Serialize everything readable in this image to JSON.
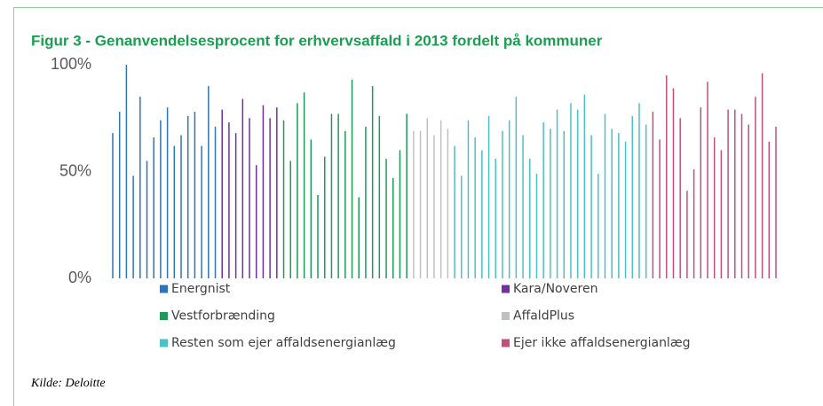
{
  "chart_data": {
    "type": "bar",
    "title": "Figur 3 - Genanvendelsesprocent for erhvervsaffald i 2013 fordelt på kommuner",
    "source": "Kilde: Deloitte",
    "ylim": [
      0,
      100
    ],
    "yticks": [
      {
        "value": 0,
        "label": "0%"
      },
      {
        "value": 50,
        "label": "50%"
      },
      {
        "value": 100,
        "label": "100%"
      }
    ],
    "series": [
      {
        "name": "Energnist",
        "color": "#2e75b6",
        "values": [
          68,
          78,
          100,
          48,
          85,
          55,
          66,
          74,
          80,
          62,
          67,
          76,
          78,
          62,
          90,
          71
        ]
      },
      {
        "name": "Kara/Noveren",
        "color": "#7030a0",
        "values": [
          79,
          73,
          68,
          84,
          75,
          53,
          81,
          75,
          80
        ]
      },
      {
        "name": "Vestforbrænding",
        "color": "#1e9a58",
        "values": [
          74,
          55,
          82,
          87,
          65,
          39,
          57,
          77,
          77,
          69,
          93,
          38,
          71,
          90,
          76,
          56,
          47,
          60,
          77
        ]
      },
      {
        "name": "AffaldPlus",
        "color": "#c0c0c0",
        "values": [
          69,
          69,
          75,
          67,
          74,
          70
        ]
      },
      {
        "name": "Resten som ejer affaldsenergianlæg",
        "color": "#4bc0c8",
        "values": [
          62,
          48,
          74,
          66,
          60,
          76,
          56,
          69,
          74,
          85,
          67,
          56,
          49,
          73,
          70,
          79,
          69,
          82,
          79,
          86,
          67,
          49,
          77,
          70,
          68,
          64,
          76,
          82,
          72
        ]
      },
      {
        "name": "Ejer ikke affaldsenergianlæg",
        "color": "#c0507a",
        "values": [
          78,
          65,
          95,
          89,
          75,
          41,
          51,
          80,
          92,
          66,
          60,
          79,
          79,
          77,
          72,
          85,
          96,
          64,
          71
        ]
      }
    ]
  }
}
